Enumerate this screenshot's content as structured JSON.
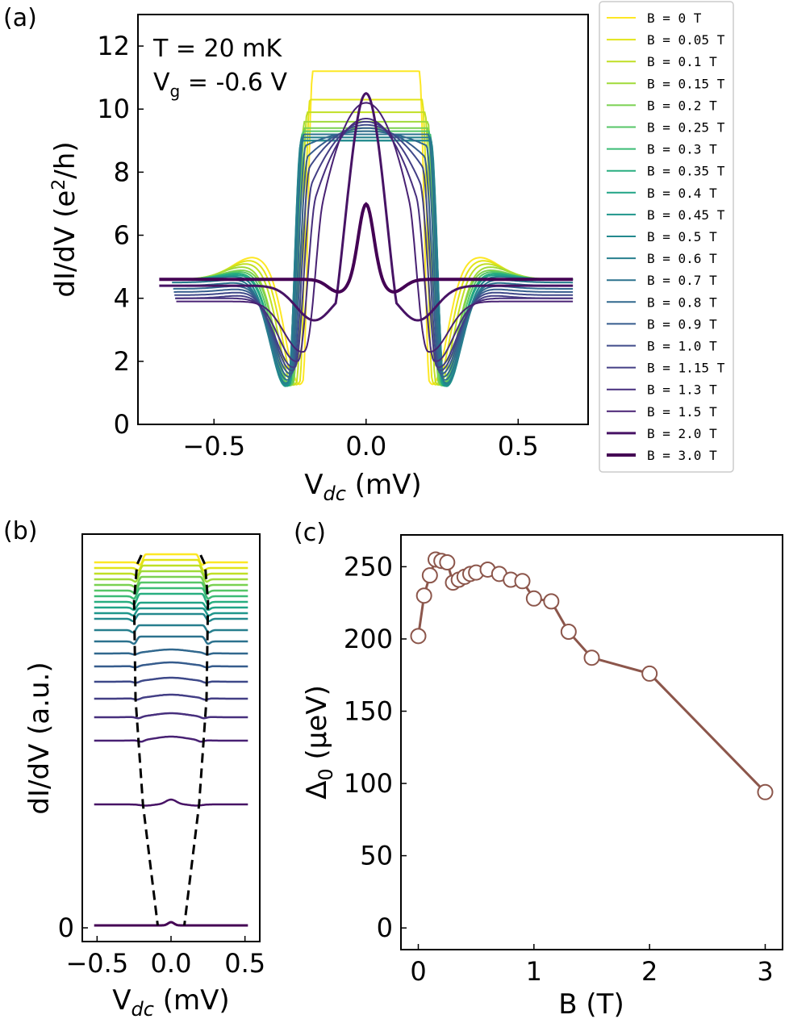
{
  "chart_data": [
    {
      "panel": "(a)",
      "type": "line",
      "xlabel_main": "V",
      "xlabel_sub": "dc",
      "xlabel_unit": " (mV)",
      "ylabel_main": "dI/dV (e",
      "ylabel_sup": "2",
      "ylabel_tail": "/h)",
      "xlim": [
        -0.75,
        0.73
      ],
      "ylim": [
        0,
        13
      ],
      "xticks": [
        -0.5,
        0.0,
        0.5
      ],
      "xtick_labels": [
        "−0.5",
        "0.0",
        "0.5"
      ],
      "yticks": [
        0,
        2,
        4,
        6,
        8,
        10,
        12
      ],
      "ytick_labels": [
        "0",
        "2",
        "4",
        "6",
        "8",
        "10",
        "12"
      ],
      "annotation_T": "T = 20 mK",
      "annotation_Vg_main": "V",
      "annotation_Vg_sub": "g",
      "annotation_Vg_tail": " = -0.6 V",
      "legend_position": "outside-right",
      "series": [
        {
          "name": "B = 0 T",
          "B": 0,
          "color": "#fde725",
          "plateau": 11.2,
          "gap": 0.2,
          "dip": 1.2,
          "coh": 5.3,
          "background": 4.6
        },
        {
          "name": "B = 0.05 T",
          "B": 0.05,
          "color": "#e2e418",
          "plateau": 10.3,
          "gap": 0.21,
          "dip": 1.2,
          "coh": 5.2,
          "background": 4.6
        },
        {
          "name": "B = 0.1 T",
          "B": 0.1,
          "color": "#c0df25",
          "plateau": 9.9,
          "gap": 0.22,
          "dip": 1.2,
          "coh": 5.1,
          "background": 4.6
        },
        {
          "name": "B = 0.15 T",
          "B": 0.15,
          "color": "#a0da39",
          "plateau": 9.6,
          "gap": 0.23,
          "dip": 1.2,
          "coh": 5.0,
          "background": 4.6
        },
        {
          "name": "B = 0.2 T",
          "B": 0.2,
          "color": "#7ad151",
          "plateau": 9.4,
          "gap": 0.23,
          "dip": 1.2,
          "coh": 4.9,
          "background": 4.6
        },
        {
          "name": "B = 0.25 T",
          "B": 0.25,
          "color": "#56c667",
          "plateau": 9.3,
          "gap": 0.235,
          "dip": 1.2,
          "coh": 4.85,
          "background": 4.6
        },
        {
          "name": "B = 0.3 T",
          "B": 0.3,
          "color": "#3bbb75",
          "plateau": 9.2,
          "gap": 0.24,
          "dip": 1.2,
          "coh": 4.8,
          "background": 4.6
        },
        {
          "name": "B = 0.35 T",
          "B": 0.35,
          "color": "#28ae80",
          "plateau": 9.1,
          "gap": 0.24,
          "dip": 1.2,
          "coh": 4.8,
          "background": 4.6
        },
        {
          "name": "B = 0.4 T",
          "B": 0.4,
          "color": "#20a386",
          "plateau": 9.0,
          "gap": 0.24,
          "dip": 1.2,
          "coh": 4.75,
          "background": 4.6
        },
        {
          "name": "B = 0.45 T",
          "B": 0.45,
          "color": "#1f968b",
          "plateau": 9.0,
          "gap": 0.245,
          "dip": 1.2,
          "coh": 4.7,
          "background": 4.6
        },
        {
          "name": "B = 0.5 T",
          "B": 0.5,
          "color": "#23898e",
          "plateau": 9.0,
          "gap": 0.245,
          "dip": 1.25,
          "coh": 4.7,
          "background": 4.6
        },
        {
          "name": "B = 0.6 T",
          "B": 0.6,
          "color": "#277f8e",
          "plateau": 9.1,
          "gap": 0.245,
          "dip": 1.3,
          "coh": 4.6,
          "background": 4.5
        },
        {
          "name": "B = 0.7 T",
          "B": 0.7,
          "color": "#2c728e",
          "plateau": 9.2,
          "gap": 0.24,
          "dip": 1.4,
          "coh": 4.5,
          "background": 4.4
        },
        {
          "name": "B = 0.8 T",
          "B": 0.8,
          "color": "#31688e",
          "plateau": 9.3,
          "gap": 0.235,
          "dip": 1.5,
          "coh": 4.4,
          "background": 4.3
        },
        {
          "name": "B = 0.9 T",
          "B": 0.9,
          "color": "#365c8d",
          "plateau": 9.4,
          "gap": 0.23,
          "dip": 1.6,
          "coh": 4.3,
          "background": 4.2
        },
        {
          "name": "B = 1.0 T",
          "B": 1.0,
          "color": "#3e4989",
          "plateau": 9.5,
          "gap": 0.225,
          "dip": 1.7,
          "coh": 4.2,
          "background": 4.1
        },
        {
          "name": "B = 1.15 T",
          "B": 1.15,
          "color": "#433e85",
          "plateau": 9.6,
          "gap": 0.22,
          "dip": 1.8,
          "coh": 4.1,
          "background": 4.0
        },
        {
          "name": "B = 1.3 T",
          "B": 1.3,
          "color": "#472f7d",
          "plateau": 9.7,
          "gap": 0.21,
          "dip": 2.0,
          "coh": 4.0,
          "background": 4.0
        },
        {
          "name": "B = 1.5 T",
          "B": 1.5,
          "color": "#482173",
          "plateau": 10.2,
          "gap": 0.19,
          "dip": 2.3,
          "coh": 3.9,
          "background": 3.9
        },
        {
          "name": "B = 2.0 T",
          "B": 2.0,
          "color": "#471365",
          "plateau": 10.5,
          "gap": 0.17,
          "dip": 3.3,
          "coh": 4.3,
          "background": 4.4
        },
        {
          "name": "B = 3.0 T",
          "B": 3.0,
          "color": "#440154",
          "plateau": 7.0,
          "gap": 0.09,
          "dip": 4.2,
          "coh": 4.5,
          "background": 4.6
        }
      ]
    },
    {
      "panel": "(b)",
      "type": "line",
      "xlabel_main": "V",
      "xlabel_sub": "dc",
      "xlabel_unit": " (mV)",
      "ylabel": "dI/dV (a.u.)",
      "xlim": [
        -0.6,
        0.6
      ],
      "xticks": [
        -0.5,
        0.0,
        0.5
      ],
      "xtick_labels": [
        "−0.5",
        "0.0",
        "0.5"
      ],
      "ytick_labels": [
        "0"
      ],
      "B_range": [
        0,
        3.0
      ],
      "description_offset_by_B": "waterfall, B=3.0 T at bottom, B=0 T at top",
      "guide_dashed_left_x": [
        -0.2,
        -0.23,
        -0.25,
        -0.24,
        -0.19,
        -0.09
      ],
      "guide_dashed_B": [
        0,
        0.1,
        0.5,
        1.0,
        2.0,
        3.0
      ]
    },
    {
      "panel": "(c)",
      "type": "scatter",
      "xlabel": "B (T)",
      "ylabel_main": "Δ",
      "ylabel_sub": "0",
      "ylabel_unit": " (μeV)",
      "xlim": [
        -0.15,
        3.15
      ],
      "ylim": [
        -15,
        272
      ],
      "xticks": [
        0,
        1,
        2,
        3
      ],
      "xtick_labels": [
        "0",
        "1",
        "2",
        "3"
      ],
      "yticks": [
        0,
        50,
        100,
        150,
        200,
        250
      ],
      "ytick_labels": [
        "0",
        "50",
        "100",
        "150",
        "200",
        "250"
      ],
      "color": "#8c564b",
      "x": [
        0,
        0.05,
        0.1,
        0.15,
        0.2,
        0.25,
        0.3,
        0.35,
        0.4,
        0.45,
        0.5,
        0.6,
        0.7,
        0.8,
        0.9,
        1.0,
        1.15,
        1.3,
        1.5,
        2.0,
        3.0
      ],
      "y": [
        202,
        230,
        244,
        255,
        254,
        253,
        239,
        241,
        243,
        245,
        246,
        248,
        245,
        241,
        240,
        228,
        226,
        205,
        187,
        176,
        94
      ]
    }
  ],
  "panel_labels": [
    "(a)",
    "(b)",
    "(c)"
  ]
}
